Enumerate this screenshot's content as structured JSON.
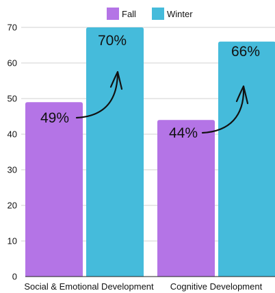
{
  "colors": {
    "fall": "#b474e6",
    "winter": "#45bbdb",
    "grid": "#d0d0d0",
    "axis": "#222222",
    "arrow": "#111111"
  },
  "chart_data": {
    "type": "bar",
    "categories": [
      "Social & Emotional Development",
      "Cognitive Development"
    ],
    "series": [
      {
        "name": "Fall",
        "values": [
          49,
          44
        ],
        "labels": [
          "49%",
          "44%"
        ]
      },
      {
        "name": "Winter",
        "values": [
          70,
          66
        ],
        "labels": [
          "70%",
          "66%"
        ]
      }
    ],
    "ylim": [
      0,
      70
    ],
    "yticks": [
      0,
      10,
      20,
      30,
      40,
      50,
      60,
      70
    ],
    "grid": true,
    "legend": "top-center",
    "annotations": "curved arrows from each Fall value to the matching Winter bar"
  }
}
